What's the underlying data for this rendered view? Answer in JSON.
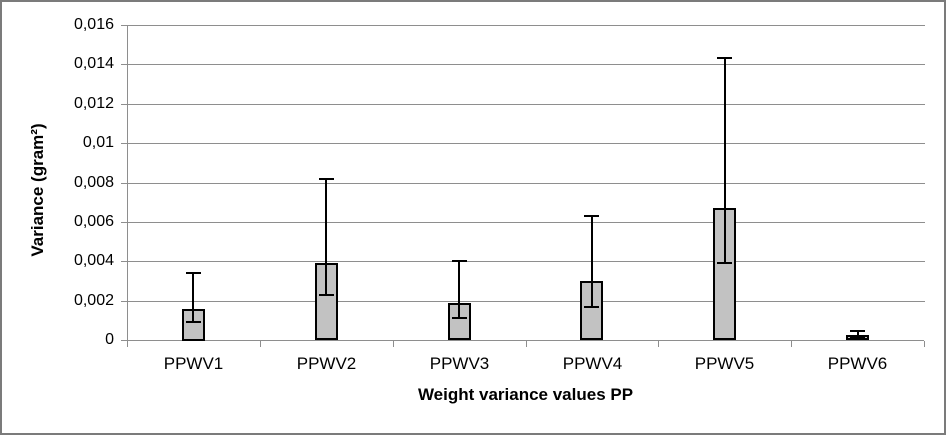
{
  "chart_data": {
    "type": "bar",
    "title": "",
    "xlabel": "Weight variance values PP",
    "ylabel": "Variance (gram²)",
    "categories": [
      "PPWV1",
      "PPWV2",
      "PPWV3",
      "PPWV4",
      "PPWV5",
      "PPWV6"
    ],
    "values": [
      0.0016,
      0.0039,
      0.0019,
      0.003,
      0.0067,
      0.00025
    ],
    "error_high": [
      0.0034,
      0.0082,
      0.004,
      0.0063,
      0.0143,
      0.00048
    ],
    "error_low": [
      0.0009,
      0.0023,
      0.0011,
      0.0017,
      0.0039,
      0.0001
    ],
    "ylim": [
      0,
      0.016
    ],
    "ytick_values": [
      0,
      0.002,
      0.004,
      0.006,
      0.008,
      0.01,
      0.012,
      0.014,
      0.016
    ],
    "ytick_labels": [
      "0",
      "0,002",
      "0,004",
      "0,006",
      "0,008",
      "0,01",
      "0,012",
      "0,014",
      "0,016"
    ],
    "grid": true,
    "legend": "none",
    "decimal_separator": ",",
    "colors": {
      "bar_fill": "#c2c2c2",
      "bar_border": "#000000",
      "gridline": "#8e8e8e",
      "axis": "#8e8e8e",
      "error_bar": "#000000",
      "frame_border": "#7b7b7b",
      "background": "#ffffff",
      "text": "#000000"
    }
  }
}
